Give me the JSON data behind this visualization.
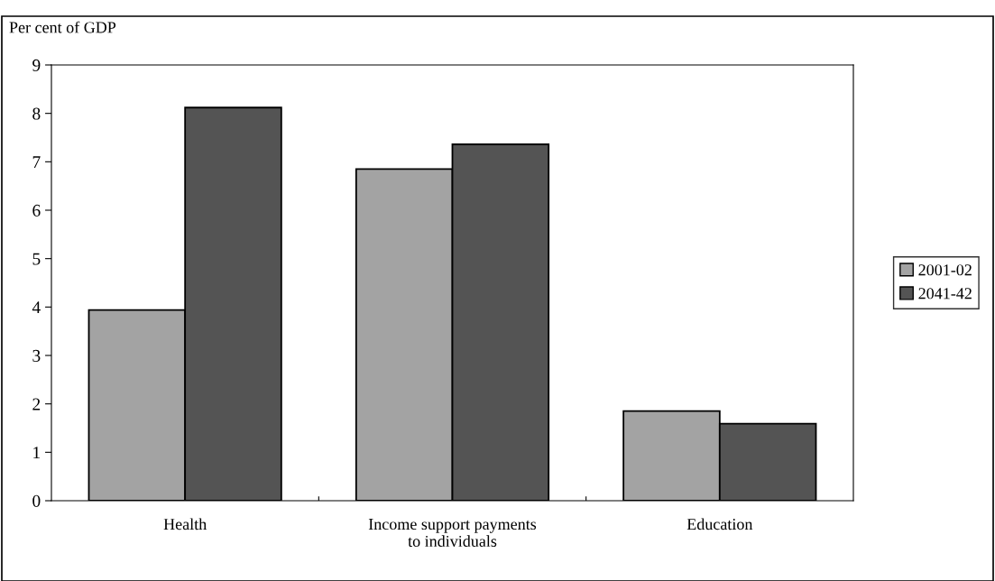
{
  "chart_data": {
    "type": "bar",
    "ylabel": "Per cent of GDP",
    "categories": [
      "Health",
      "Income support payments\nto individuals",
      "Education"
    ],
    "series": [
      {
        "name": "2001-02",
        "color": "#a3a3a3",
        "values": [
          3.94,
          6.85,
          1.85
        ]
      },
      {
        "name": "2041-42",
        "color": "#545454",
        "values": [
          8.12,
          7.36,
          1.59
        ]
      }
    ],
    "ylim": [
      0,
      9
    ],
    "yticks": [
      0,
      1,
      2,
      3,
      4,
      5,
      6,
      7,
      8,
      9
    ],
    "grid": false,
    "legend": "right"
  }
}
